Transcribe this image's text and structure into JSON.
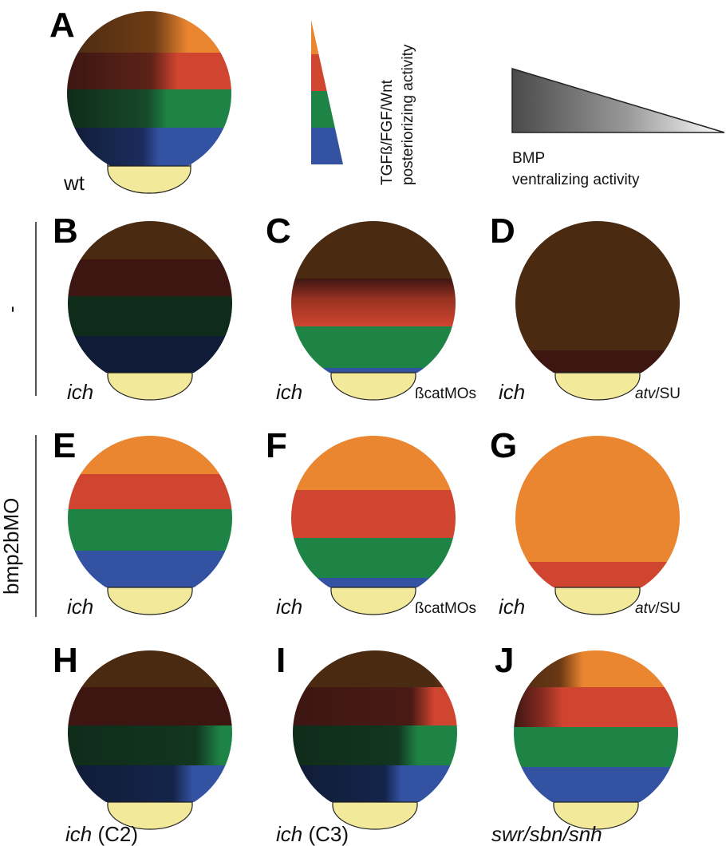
{
  "panels": {
    "A": {
      "letter": "A",
      "caption": "wt"
    },
    "B": {
      "letter": "B",
      "caption_italic": "ich"
    },
    "C": {
      "letter": "C",
      "caption_italic": "ich",
      "sub": "ßcatMOs"
    },
    "D": {
      "letter": "D",
      "caption_italic": "ich",
      "sub_italic": "atv",
      "sub_rest": "/SU"
    },
    "E": {
      "letter": "E",
      "caption_italic": "ich"
    },
    "F": {
      "letter": "F",
      "caption_italic": "ich",
      "sub": "ßcatMOs"
    },
    "G": {
      "letter": "G",
      "caption_italic": "ich",
      "sub_italic": "atv",
      "sub_rest": "/SU"
    },
    "H": {
      "letter": "H",
      "caption_italic": "ich",
      "caption_rest": " (C2)"
    },
    "I": {
      "letter": "I",
      "caption_italic": "ich",
      "caption_rest": " (C3)"
    },
    "J": {
      "letter": "J",
      "caption_italic": "swr/sbn/snh"
    }
  },
  "row_labels": {
    "untreated": "-",
    "morphant": "bmp2bMO"
  },
  "legend": {
    "posterior_line1": "TGFß/FGF/Wnt",
    "posterior_line2": "posteriorizing activity",
    "bmp_line1": "BMP",
    "bmp_line2": "ventralizing activity"
  },
  "colors": {
    "orange": "#ea8530",
    "red": "#cf4530",
    "green": "#1e8446",
    "blue": "#3352a2",
    "dark_brown": "#4b2a12",
    "dark_red": "#3d1612",
    "dark_green": "#0f2c1a",
    "dark_blue": "#101c37",
    "yolk": "#f2e99b"
  }
}
